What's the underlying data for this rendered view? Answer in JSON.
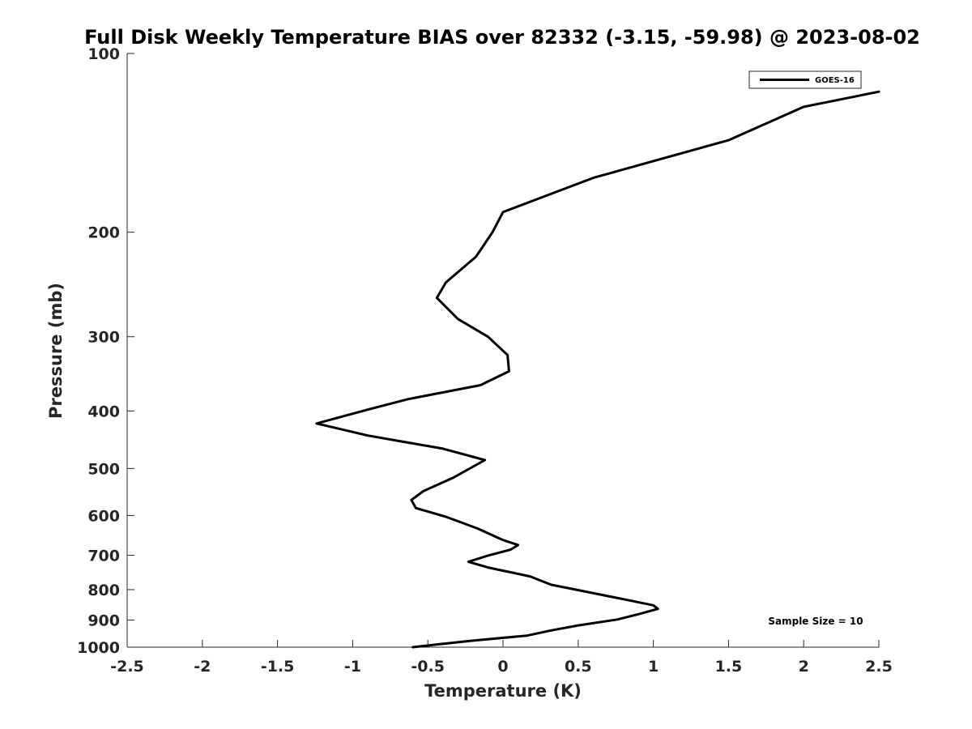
{
  "chart_data": {
    "type": "line",
    "title": "Full Disk Weekly Temperature BIAS over 82332 (-3.15, -59.98) @ 2023-08-02",
    "xlabel": "Temperature (K)",
    "ylabel": "Pressure (mb)",
    "xlim": [
      -2.5,
      2.5
    ],
    "ylim": [
      1000,
      100
    ],
    "y_scale": "log",
    "y_reversed": true,
    "grid": false,
    "x_ticks": [
      -2.5,
      -2,
      -1.5,
      -1,
      -0.5,
      0,
      0.5,
      1,
      1.5,
      2,
      2.5
    ],
    "x_tick_labels": [
      "-2.5",
      "-2",
      "-1.5",
      "-1",
      "-0.5",
      "0",
      "0.5",
      "1",
      "1.5",
      "2",
      "2.5"
    ],
    "y_ticks": [
      100,
      200,
      300,
      400,
      500,
      600,
      700,
      800,
      900,
      1000
    ],
    "y_tick_labels": [
      "100",
      "200",
      "300",
      "400",
      "500",
      "600",
      "700",
      "800",
      "900",
      "1000"
    ],
    "legend": {
      "placement": "top-right",
      "entries": [
        "GOES-16"
      ]
    },
    "annotation": "Sample Size = 10",
    "series": [
      {
        "name": "GOES-16",
        "color": "#000000",
        "points": [
          {
            "x": 2.5,
            "y": 116
          },
          {
            "x": 2.0,
            "y": 123
          },
          {
            "x": 1.5,
            "y": 140
          },
          {
            "x": 0.6,
            "y": 162
          },
          {
            "x": 0.0,
            "y": 185
          },
          {
            "x": -0.07,
            "y": 200
          },
          {
            "x": -0.18,
            "y": 220
          },
          {
            "x": -0.38,
            "y": 243
          },
          {
            "x": -0.44,
            "y": 258
          },
          {
            "x": -0.3,
            "y": 280
          },
          {
            "x": -0.1,
            "y": 300
          },
          {
            "x": 0.03,
            "y": 322
          },
          {
            "x": 0.04,
            "y": 343
          },
          {
            "x": -0.15,
            "y": 362
          },
          {
            "x": -0.63,
            "y": 382
          },
          {
            "x": -0.9,
            "y": 398
          },
          {
            "x": -1.24,
            "y": 420
          },
          {
            "x": -0.9,
            "y": 440
          },
          {
            "x": -0.4,
            "y": 463
          },
          {
            "x": -0.12,
            "y": 484
          },
          {
            "x": -0.33,
            "y": 518
          },
          {
            "x": -0.53,
            "y": 546
          },
          {
            "x": -0.61,
            "y": 565
          },
          {
            "x": -0.58,
            "y": 583
          },
          {
            "x": -0.38,
            "y": 603
          },
          {
            "x": -0.17,
            "y": 631
          },
          {
            "x": 0.0,
            "y": 660
          },
          {
            "x": 0.1,
            "y": 673
          },
          {
            "x": 0.05,
            "y": 685
          },
          {
            "x": -0.1,
            "y": 701
          },
          {
            "x": -0.23,
            "y": 718
          },
          {
            "x": -0.1,
            "y": 734
          },
          {
            "x": 0.18,
            "y": 760
          },
          {
            "x": 0.32,
            "y": 785
          },
          {
            "x": 0.58,
            "y": 809
          },
          {
            "x": 0.84,
            "y": 834
          },
          {
            "x": 1.0,
            "y": 850
          },
          {
            "x": 1.03,
            "y": 862
          },
          {
            "x": 0.9,
            "y": 880
          },
          {
            "x": 0.76,
            "y": 898
          },
          {
            "x": 0.5,
            "y": 919
          },
          {
            "x": 0.32,
            "y": 937
          },
          {
            "x": 0.16,
            "y": 956
          },
          {
            "x": -0.2,
            "y": 975
          },
          {
            "x": -0.42,
            "y": 988
          },
          {
            "x": -0.6,
            "y": 1000
          }
        ]
      }
    ]
  }
}
